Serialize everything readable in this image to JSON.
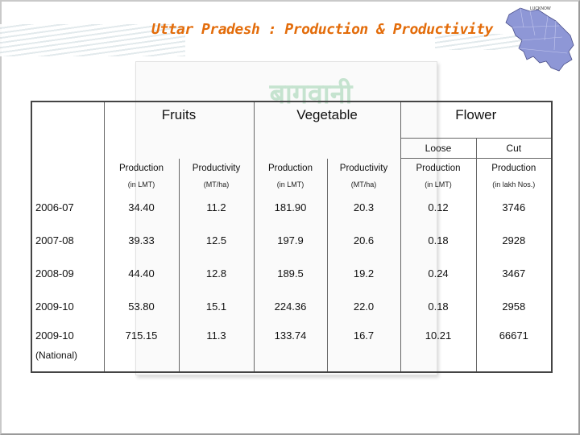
{
  "slide": {
    "title": "Uttar Pradesh : Production & Productivity",
    "map_label": "LUCKNOW"
  },
  "watermark_text": "बागवानी",
  "table": {
    "groups": [
      {
        "label": "Fruits"
      },
      {
        "label": "Vegetable"
      },
      {
        "label": "Flower"
      }
    ],
    "flower_sub": [
      "Loose",
      "Cut"
    ],
    "metrics": [
      "Production",
      "Productivity",
      "Production",
      "Productivity",
      "Production",
      "Production"
    ],
    "units": [
      "(in LMT)",
      "(MT/ha)",
      "(in LMT)",
      "(MT/ha)",
      "(in LMT)",
      "(in lakh Nos.)"
    ],
    "rows": [
      {
        "year": "2006-07",
        "sub": "",
        "values": [
          "34.40",
          "11.2",
          "181.90",
          "20.3",
          "0.12",
          "3746"
        ]
      },
      {
        "year": "2007-08",
        "sub": "",
        "values": [
          "39.33",
          "12.5",
          "197.9",
          "20.6",
          "0.18",
          "2928"
        ]
      },
      {
        "year": "2008-09",
        "sub": "",
        "values": [
          "44.40",
          "12.8",
          "189.5",
          "19.2",
          "0.24",
          "3467"
        ]
      },
      {
        "year": "2009-10",
        "sub": "",
        "values": [
          "53.80",
          "15.1",
          "224.36",
          "22.0",
          "0.18",
          "2958"
        ]
      },
      {
        "year": "2009-10",
        "sub": "(National)",
        "values": [
          "715.15",
          "11.3",
          "133.74",
          "16.7",
          "10.21",
          "66671"
        ]
      }
    ]
  },
  "colors": {
    "title": "#e36c0a",
    "map_fill": "#8e97d6",
    "watermark": "#c5e3cf"
  }
}
